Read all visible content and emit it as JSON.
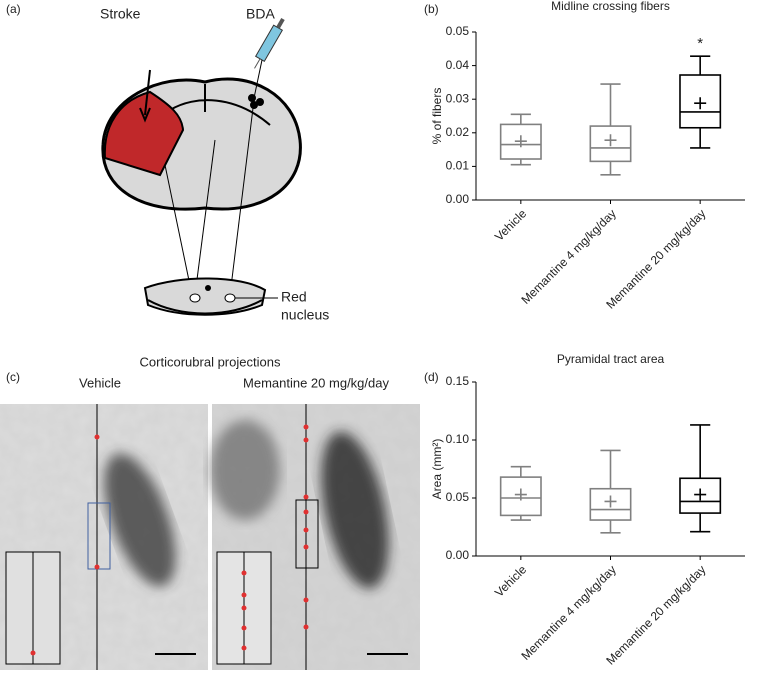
{
  "figure": {
    "panel_a": {
      "label": "(a)",
      "stroke": "Stroke",
      "injection": "BDA",
      "red_nucleus": [
        "Red",
        "nucleus"
      ]
    },
    "panel_c": {
      "label": "(c)",
      "title": "Corticorubral projections",
      "left": "Vehicle",
      "right": "Memantine 20 mg/kg/day"
    }
  },
  "chart_data": [
    {
      "type": "box",
      "panel": "(b)",
      "title": "Midline crossing fibers",
      "y_label": "% of fibers",
      "categories": [
        "Vehicle",
        "Memantine 4 mg/kg/day",
        "Memantine 20 mg/kg/day"
      ],
      "colors": [
        "#808080",
        "#808080",
        "#000000"
      ],
      "boxes": [
        {
          "min": 0.0105,
          "q1": 0.0122,
          "median": 0.0165,
          "q3": 0.0225,
          "max": 0.0255,
          "mean": 0.0175
        },
        {
          "min": 0.0075,
          "q1": 0.0115,
          "median": 0.0155,
          "q3": 0.022,
          "max": 0.0345,
          "mean": 0.0178
        },
        {
          "min": 0.0155,
          "q1": 0.0215,
          "median": 0.0262,
          "q3": 0.0372,
          "max": 0.0428,
          "mean": 0.0288
        }
      ],
      "annotations": [
        null,
        null,
        "*"
      ],
      "ylim": [
        0,
        0.05
      ],
      "yticks": [
        {
          "value": 0,
          "label": "0.00"
        },
        0.01,
        0.02,
        0.03,
        0.04,
        0.05
      ]
    },
    {
      "type": "box",
      "panel": "(d)",
      "title": "Pyramidal tract area",
      "y_label": "Area (mm²)",
      "categories": [
        "Vehicle",
        "Memantine 4 mg/kg/day",
        "Memantine 20 mg/kg/day"
      ],
      "colors": [
        "#808080",
        "#808080",
        "#000000"
      ],
      "boxes": [
        {
          "min": 0.031,
          "q1": 0.035,
          "median": 0.05,
          "q3": 0.068,
          "max": 0.077,
          "mean": 0.053
        },
        {
          "min": 0.02,
          "q1": 0.031,
          "median": 0.04,
          "q3": 0.058,
          "max": 0.091,
          "mean": 0.047
        },
        {
          "min": 0.021,
          "q1": 0.037,
          "median": 0.047,
          "q3": 0.067,
          "max": 0.113,
          "mean": 0.053
        }
      ],
      "ylim": [
        0,
        0.15
      ],
      "yticks": [
        {
          "value": 0,
          "label": "0.00"
        },
        0.05,
        {
          "value": 0.1,
          "label": "0.10"
        },
        0.15
      ]
    }
  ]
}
